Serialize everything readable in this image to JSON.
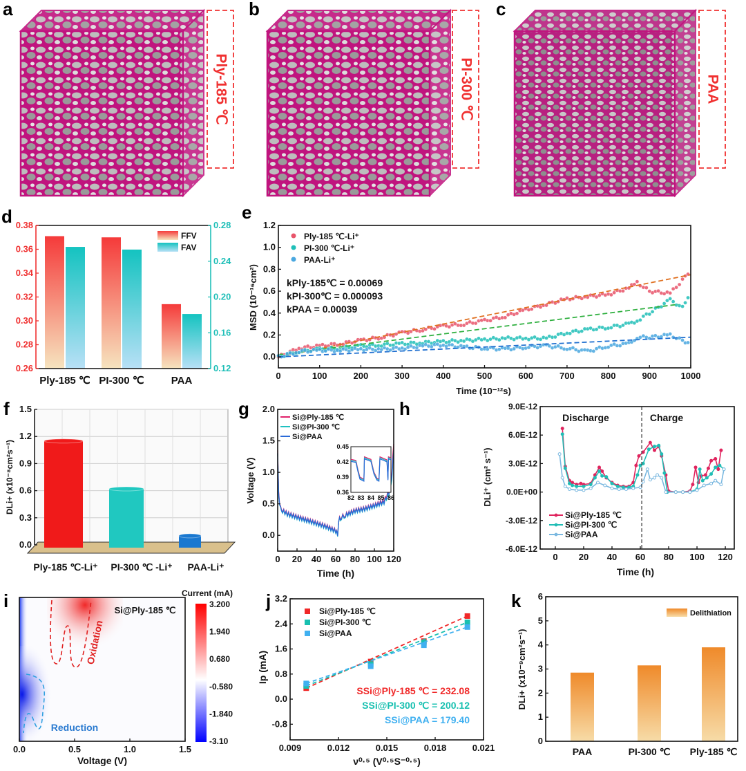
{
  "cubes": [
    {
      "panel": "a",
      "label": "Ply-185 ℃"
    },
    {
      "panel": "b",
      "label": "PI-300 ℃"
    },
    {
      "panel": "c",
      "label": "PAA"
    }
  ],
  "colors": {
    "ply": "#e8546a",
    "pi": "#1fbfb8",
    "paa": "#4aa8e0",
    "red": "#f03030",
    "matrix": "#c0147e"
  },
  "chart_data": [
    {
      "panel": "d",
      "type": "bar",
      "categories": [
        "Ply-185 ℃",
        "PI-300 ℃",
        "PAA"
      ],
      "series": [
        {
          "name": "FFV",
          "axis": "left",
          "values": [
            0.371,
            0.37,
            0.314
          ]
        },
        {
          "name": "FAV",
          "axis": "right",
          "values": [
            0.256,
            0.253,
            0.181
          ]
        }
      ],
      "ylim": [
        0.26,
        0.38
      ],
      "yticks": [
        "0.26",
        "0.28",
        "0.30",
        "0.32",
        "0.34",
        "0.36",
        "0.38"
      ],
      "y2lim": [
        0.12,
        0.28
      ],
      "y2ticks": [
        "0.12",
        "0.16",
        "0.20",
        "0.24",
        "0.28"
      ],
      "legend": "top-right"
    },
    {
      "panel": "e",
      "type": "scatter",
      "xlabel": "Time (10⁻¹²s)",
      "ylabel": "MSD (10⁻¹⁶cm²)",
      "xlim": [
        0,
        1000
      ],
      "ylim": [
        -0.1,
        1.2
      ],
      "xticks": [
        "0",
        "100",
        "200",
        "300",
        "400",
        "500",
        "600",
        "700",
        "800",
        "900",
        "1000"
      ],
      "yticks": [
        "0.0",
        "0.2",
        "0.4",
        "0.6",
        "0.8",
        "1.0",
        "1.2"
      ],
      "x": [
        0,
        50,
        100,
        150,
        200,
        250,
        300,
        350,
        400,
        450,
        500,
        550,
        600,
        650,
        700,
        750,
        800,
        850,
        870,
        900,
        950,
        980,
        1000
      ],
      "series": [
        {
          "name": "Ply-185 ℃-Li⁺",
          "values": [
            0,
            0.08,
            0.1,
            0.12,
            0.15,
            0.18,
            0.22,
            0.25,
            0.28,
            0.3,
            0.33,
            0.37,
            0.43,
            0.48,
            0.53,
            0.55,
            0.57,
            0.63,
            0.68,
            0.6,
            0.58,
            0.7,
            0.8
          ],
          "fit": [
            0,
            0.75
          ]
        },
        {
          "name": "PI-300 ℃-Li⁺",
          "values": [
            0,
            0.05,
            0.07,
            0.08,
            0.1,
            0.11,
            0.12,
            0.13,
            0.14,
            0.15,
            0.16,
            0.17,
            0.17,
            0.17,
            0.22,
            0.25,
            0.27,
            0.3,
            0.33,
            0.4,
            0.52,
            0.45,
            0.6
          ],
          "fit": [
            0.02,
            0.48
          ]
        },
        {
          "name": "PAA-Li⁺",
          "values": [
            0,
            0.05,
            0.06,
            0.06,
            0.07,
            0.07,
            0.08,
            0.1,
            0.11,
            0.09,
            0.08,
            0.07,
            0.09,
            0.1,
            0.08,
            0.05,
            0.1,
            0.12,
            0.18,
            0.18,
            0.2,
            0.15,
            0.12
          ],
          "fit": [
            0,
            0.18
          ]
        }
      ],
      "annotations": [
        "kPly-185℃ = 0.00069",
        "kPI-300℃ = 0.000093",
        "kPAA = 0.00039"
      ],
      "legend": "top-left"
    },
    {
      "panel": "f",
      "type": "bar",
      "categories": [
        "Ply-185 ℃-Li⁺",
        "PI-300 ℃ -Li⁺",
        "PAA-Li⁺"
      ],
      "values": [
        1.15,
        0.62,
        0.1
      ],
      "ylabel": "DLi+ (x10⁻⁸cm²s⁻¹)",
      "ylim": [
        0,
        1.5
      ],
      "yticks": [
        "0.0",
        "0.3",
        "0.6",
        "0.9",
        "1.2",
        "1.5"
      ]
    },
    {
      "panel": "g",
      "type": "line",
      "xlabel": "Time (h)",
      "ylabel": "Voltage (V)",
      "xlim": [
        0,
        120
      ],
      "ylim": [
        -0.25,
        2.0
      ],
      "xticks": [
        "0",
        "20",
        "40",
        "60",
        "80",
        "100",
        "120"
      ],
      "yticks": [
        "0.0",
        "0.5",
        "1.0",
        "1.5",
        "2.0"
      ],
      "x": [
        0,
        1,
        2,
        5,
        10,
        20,
        30,
        40,
        50,
        60,
        62,
        63,
        66,
        70,
        80,
        90,
        100,
        110,
        115,
        118,
        120
      ],
      "series": [
        {
          "name": "Si@Ply-185 ℃",
          "values": [
            1.35,
            0.7,
            0.5,
            0.4,
            0.35,
            0.3,
            0.25,
            0.2,
            0.15,
            0.08,
            0.02,
            0.25,
            0.3,
            0.33,
            0.4,
            0.43,
            0.48,
            0.55,
            0.7,
            1.0,
            1.45
          ]
        },
        {
          "name": "Si@PI-300 ℃",
          "values": [
            1.3,
            0.65,
            0.48,
            0.38,
            0.33,
            0.28,
            0.23,
            0.18,
            0.13,
            0.06,
            0.01,
            0.23,
            0.28,
            0.31,
            0.38,
            0.41,
            0.46,
            0.52,
            0.65,
            0.9,
            1.3
          ]
        },
        {
          "name": "Si@PAA",
          "values": [
            1.3,
            0.66,
            0.49,
            0.39,
            0.34,
            0.29,
            0.24,
            0.19,
            0.14,
            0.07,
            0.02,
            0.24,
            0.29,
            0.32,
            0.39,
            0.42,
            0.47,
            0.53,
            0.68,
            0.95,
            1.35
          ]
        }
      ],
      "inset": {
        "xlim": [
          82,
          86
        ],
        "ylim": [
          0.36,
          0.45
        ],
        "xticks": [
          "82",
          "83",
          "84",
          "85",
          "86"
        ],
        "yticks": [
          "0.36",
          "0.39",
          "0.42",
          "0.45"
        ]
      }
    },
    {
      "panel": "h",
      "type": "line",
      "xlabel": "Time (h)",
      "ylabel": "DLi⁺ (cm² s⁻¹)",
      "xlim": [
        -10.7,
        126.3
      ],
      "ylim": [
        -6e-12,
        9e-12
      ],
      "xticks": [
        "0",
        "20",
        "40",
        "60",
        "80",
        "100",
        "120"
      ],
      "yticks": [
        "-6.0E-12",
        "-3.0E-12",
        "0.0E+00",
        "3.0E-12",
        "6.0E-12",
        "9.0E-12"
      ],
      "annotations": [
        "Discharge",
        "Charge"
      ],
      "divider_x": 61,
      "series": [
        {
          "name": "Si@Ply-185 ℃",
          "x": [
            5,
            7,
            10,
            12,
            15,
            18,
            20,
            25,
            28,
            31,
            33,
            36,
            40,
            44,
            48,
            52,
            55,
            57,
            59,
            62,
            67,
            70,
            73,
            75,
            78,
            80,
            85,
            90,
            95,
            97,
            99,
            101,
            103,
            106,
            108,
            110,
            113,
            115,
            117
          ],
          "values": [
            6.7e-12,
            2.7e-12,
            1.2e-12,
            1e-12,
            8e-13,
            9e-13,
            8e-13,
            9e-13,
            1.8e-12,
            2.6e-12,
            2.2e-12,
            1.5e-12,
            1e-12,
            7e-13,
            6e-13,
            6e-13,
            1e-12,
            2.8e-12,
            3.8e-12,
            4.2e-12,
            5.2e-12,
            4.4e-12,
            4.8e-12,
            3.8e-12,
            1.8e-12,
            1e-13,
            0,
            0,
            1e-13,
            8e-13,
            2.6e-12,
            1e-12,
            1.7e-12,
            1.8e-12,
            2.5e-12,
            3.3e-12,
            3.5e-12,
            2.4e-12,
            4.4e-12
          ]
        },
        {
          "name": "Si@PI-300 ℃",
          "x": [
            5,
            7,
            10,
            12,
            15,
            20,
            25,
            28,
            31,
            33,
            36,
            40,
            44,
            48,
            52,
            55,
            58,
            60,
            62,
            66,
            70,
            73,
            75,
            77,
            79,
            85,
            90,
            95,
            100,
            102,
            104,
            107,
            110,
            113,
            116,
            119
          ],
          "values": [
            6.1e-12,
            2.5e-12,
            9e-13,
            7e-13,
            6e-13,
            6e-13,
            8e-13,
            1.5e-12,
            2.2e-12,
            1.7e-12,
            1.6e-12,
            9e-13,
            6e-13,
            5e-13,
            5e-13,
            6e-13,
            1.8e-12,
            2.8e-12,
            3e-12,
            4.5e-12,
            4.8e-12,
            4.9e-12,
            4e-12,
            2e-12,
            0,
            0,
            0,
            0,
            3e-13,
            2.4e-12,
            1.2e-12,
            1.5e-12,
            1.9e-12,
            2.6e-12,
            2.8e-12,
            2.4e-12
          ]
        },
        {
          "name": "Si@PAA",
          "x": [
            3,
            5,
            7,
            10,
            15,
            20,
            25,
            30,
            35,
            40,
            45,
            50,
            55,
            60,
            62,
            65,
            67,
            70,
            72,
            75,
            78,
            85,
            90,
            95,
            100,
            105,
            110,
            113,
            117,
            119
          ],
          "values": [
            4e-12,
            1.5e-12,
            6e-13,
            3e-13,
            2e-13,
            2e-13,
            4e-13,
            1e-12,
            7e-13,
            4e-13,
            3e-13,
            3e-13,
            4e-13,
            5e-13,
            1.1e-12,
            2.4e-12,
            1.3e-12,
            1.5e-12,
            1.8e-12,
            1.5e-12,
            0,
            0,
            0,
            0,
            2e-13,
            7e-13,
            9e-13,
            1.2e-12,
            8e-13,
            2.4e-12
          ]
        }
      ],
      "legend": "bottom-left"
    },
    {
      "panel": "i",
      "type": "heatmap",
      "xlabel": "Voltage (V)",
      "xlim": [
        0,
        1.5
      ],
      "xticks": [
        "0.0",
        "0.5",
        "1.0",
        "1.5"
      ],
      "colorbar_label": "Current (mA)",
      "colorbar_ticks": [
        "3.200",
        "1.940",
        "0.680",
        "-0.580",
        "-1.840",
        "-3.10"
      ],
      "annotations": [
        "Si@Ply-185 ℃",
        "Oxidation",
        "Reduction"
      ]
    },
    {
      "panel": "j",
      "type": "scatter",
      "xlabel": "ν⁰·⁵ (V⁰·⁵S⁻⁰·⁵)",
      "ylabel": "Ip (mA)",
      "xlim": [
        0.009,
        0.021
      ],
      "ylim": [
        -1.3,
        3.2
      ],
      "xticks": [
        "0.009",
        "0.012",
        "0.015",
        "0.018",
        "0.021"
      ],
      "yticks": [
        "-0.8",
        "0.0",
        "0.8",
        "1.6",
        "2.4",
        "3.2"
      ],
      "x": [
        0.01,
        0.014,
        0.0173,
        0.02
      ],
      "series": [
        {
          "name": "Si@Ply-185 ℃",
          "values": [
            0.35,
            1.2,
            1.85,
            2.65
          ],
          "annotation": "SSi@Ply-185 ℃ = 232.08"
        },
        {
          "name": "Si@PI-300 ℃",
          "values": [
            0.42,
            1.12,
            1.8,
            2.45
          ],
          "annotation": "SSi@PI-300 ℃ = 200.12"
        },
        {
          "name": "Si@PAA",
          "values": [
            0.5,
            1.05,
            1.72,
            2.3
          ],
          "annotation": "SSi@PAA = 179.40"
        }
      ],
      "legend": "top-left"
    },
    {
      "panel": "k",
      "type": "bar",
      "categories": [
        "PAA",
        "PI-300 ℃",
        "Ply-185 ℃"
      ],
      "values": [
        2.85,
        3.15,
        3.9
      ],
      "series_name": "Delithiation",
      "ylabel": "DLi+ (x10⁻⁹cm²s⁻¹)",
      "ylim": [
        0,
        6
      ],
      "yticks": [
        "0",
        "1",
        "2",
        "3",
        "4",
        "5",
        "6"
      ],
      "legend": "top-right"
    }
  ]
}
